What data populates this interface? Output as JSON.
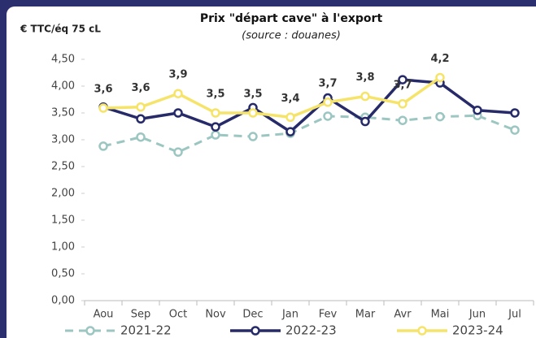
{
  "chart_data": {
    "type": "line",
    "title": "Prix \"départ cave\" à l'export",
    "subtitle": "(source : douanes)",
    "y_axis_label": "€ TTC/éq 75 cL",
    "categories": [
      "Aou",
      "Sep",
      "Oct",
      "Nov",
      "Dec",
      "Jan",
      "Fev",
      "Mar",
      "Avr",
      "Mai",
      "Jun",
      "Jul"
    ],
    "series": [
      {
        "name": "2021-22",
        "color": "#9cc6c1",
        "linestyle": "dashed",
        "values": [
          2.88,
          3.05,
          2.77,
          3.09,
          3.06,
          3.12,
          3.44,
          3.42,
          3.36,
          3.43,
          3.45,
          3.18
        ]
      },
      {
        "name": "2022-23",
        "color": "#262a68",
        "linestyle": "solid",
        "values": [
          3.61,
          3.39,
          3.5,
          3.24,
          3.6,
          3.15,
          3.78,
          3.34,
          4.12,
          4.06,
          3.55,
          3.5
        ]
      },
      {
        "name": "2023-24",
        "color": "#f6e46a",
        "linestyle": "solid",
        "values": [
          3.59,
          3.61,
          3.86,
          3.5,
          3.5,
          3.42,
          3.7,
          3.81,
          3.67,
          4.16,
          null,
          null
        ],
        "value_labels": [
          "3,6",
          "3,6",
          "3,9",
          "3,5",
          "3,5",
          "3,4",
          "3,7",
          "3,8",
          "3,7",
          "4,2",
          null,
          null
        ]
      }
    ],
    "ylim": [
      0,
      4.5
    ],
    "yticks": [
      {
        "value": 0,
        "label": "0,00"
      },
      {
        "value": 0.5,
        "label": "0,50"
      },
      {
        "value": 1,
        "label": "1,00"
      },
      {
        "value": 1.5,
        "label": "1,50"
      },
      {
        "value": 2,
        "label": "2,00"
      },
      {
        "value": 2.5,
        "label": "2,50"
      },
      {
        "value": 3,
        "label": "3,00"
      },
      {
        "value": 3.5,
        "label": "3,50"
      },
      {
        "value": 4,
        "label": "4,00"
      },
      {
        "value": 4.5,
        "label": "4,50"
      }
    ],
    "grid": false,
    "legend": "bottom"
  }
}
